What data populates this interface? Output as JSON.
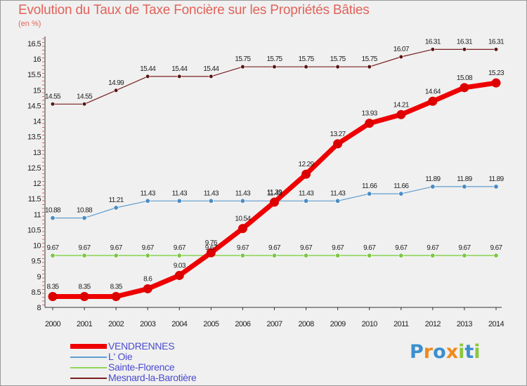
{
  "title": "Evolution du Taux de Taxe Foncière sur les Propriétés Bâties",
  "unit_label": "(en %)",
  "logo": {
    "text": "Proxiti",
    "letters": [
      {
        "ch": "P",
        "color": "#3a8fd0"
      },
      {
        "ch": "r",
        "color": "#f08a1c"
      },
      {
        "ch": "o",
        "color": "#3a8fd0"
      },
      {
        "ch": "x",
        "color": "#f08a1c"
      },
      {
        "ch": "i",
        "color": "#8cc63e"
      },
      {
        "ch": "t",
        "color": "#3a8fd0"
      },
      {
        "ch": "i",
        "color": "#8cc63e"
      }
    ]
  },
  "chart_data": {
    "type": "line",
    "title": "Evolution du Taux de Taxe Foncière sur les Propriétés Bâties",
    "ylabel": "(en %)",
    "xlabel": "",
    "ylim": [
      8,
      16.5
    ],
    "yticks": [
      "8",
      "8.5",
      "9",
      "9.5",
      "10",
      "10.5",
      "11",
      "11.5",
      "12",
      "12.5",
      "13",
      "13.5",
      "14",
      "14.5",
      "15",
      "15.5",
      "16",
      "16.5"
    ],
    "categories": [
      "2000",
      "2001",
      "2002",
      "2003",
      "2004",
      "2005",
      "2006",
      "2007",
      "2008",
      "2009",
      "2010",
      "2011",
      "2012",
      "2013",
      "2014"
    ],
    "grid": false,
    "legend_position": "bottom-left",
    "series": [
      {
        "name": "Mesnard-la-Barotière",
        "color": "#7a1f1f",
        "marker": "#5a1515",
        "width": 1.2,
        "radius": 2.8,
        "values": [
          14.55,
          14.55,
          14.99,
          15.44,
          15.44,
          15.44,
          15.75,
          15.75,
          15.75,
          15.75,
          15.75,
          16.07,
          16.31,
          16.31,
          16.31
        ],
        "labels": [
          "14.55",
          "14.55",
          "14.99",
          "15.44",
          "15.44",
          "15.44",
          "15.75",
          "15.75",
          "15.75",
          "15.75",
          "15.75",
          "16.07",
          "16.31",
          "16.31",
          "16.31"
        ]
      },
      {
        "name": "L' Oie",
        "color": "#5f9dcf",
        "marker": "#4a8cc4",
        "width": 1.2,
        "radius": 3.2,
        "values": [
          10.88,
          10.88,
          11.21,
          11.43,
          11.43,
          11.43,
          11.43,
          11.43,
          11.43,
          11.43,
          11.66,
          11.66,
          11.89,
          11.89,
          11.89
        ],
        "labels": [
          "10.88",
          "10.88",
          "11.21",
          "11.43",
          "11.43",
          "11.43",
          "11.43",
          "11.43",
          "11.43",
          "11.43",
          "11.66",
          "11.66",
          "11.89",
          "11.89",
          "11.89"
        ]
      },
      {
        "name": "Sainte-Florence",
        "color": "#8fd65a",
        "marker": "#7cc645",
        "width": 1.6,
        "radius": 3.2,
        "values": [
          9.67,
          9.67,
          9.67,
          9.67,
          9.67,
          9.67,
          9.67,
          9.67,
          9.67,
          9.67,
          9.67,
          9.67,
          9.67,
          9.67,
          9.67
        ],
        "labels": [
          "9.67",
          "9.67",
          "9.67",
          "9.67",
          "9.67",
          "9.67",
          "9.67",
          "9.67",
          "9.67",
          "9.67",
          "9.67",
          "9.67",
          "9.67",
          "9.67",
          "9.67"
        ]
      },
      {
        "name": "VENDRENNES",
        "color": "#ee0000",
        "marker": "#dd0000",
        "width": 7,
        "radius": 6.5,
        "values": [
          8.35,
          8.35,
          8.35,
          8.6,
          9.03,
          9.76,
          10.54,
          11.39,
          12.29,
          13.27,
          13.93,
          14.21,
          14.64,
          15.08,
          15.23
        ],
        "labels": [
          "8.35",
          "8.35",
          "8.35",
          "8.6",
          "9.03",
          "9.76",
          "10.54",
          "11.39",
          "12.29",
          "13.27",
          "13.93",
          "14.21",
          "14.64",
          "15.08",
          "15.23"
        ]
      }
    ],
    "legend": [
      {
        "name": "VENDRENNES",
        "color": "#ee0000",
        "thickness": 7
      },
      {
        "name": "L' Oie",
        "color": "#5f9dcf",
        "thickness": 2
      },
      {
        "name": "Sainte-Florence",
        "color": "#8fd65a",
        "thickness": 2
      },
      {
        "name": "Mesnard-la-Barotière",
        "color": "#7a1f1f",
        "thickness": 2
      }
    ]
  }
}
